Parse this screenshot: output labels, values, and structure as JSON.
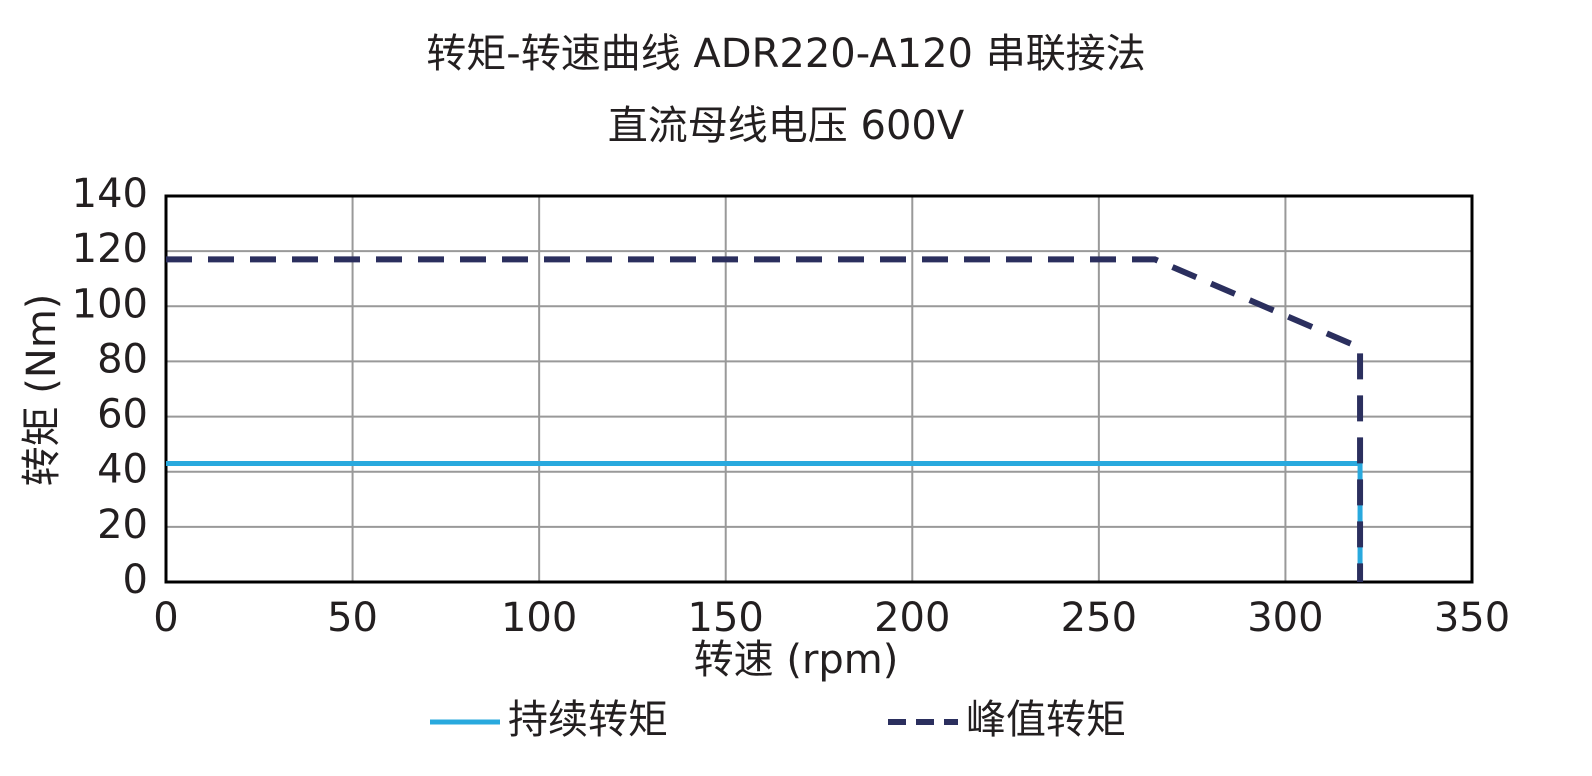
{
  "chart_data": {
    "type": "line",
    "title": "转矩-转速曲线 ADR220-A120 串联接法",
    "subtitle": "直流母线电压 600V",
    "x_label": "转速 (rpm)",
    "y_label": "转矩 (Nm)",
    "xlim": [
      0,
      350
    ],
    "xticks": [
      0,
      50,
      100,
      150,
      200,
      250,
      300,
      350
    ],
    "ylim": [
      0,
      140
    ],
    "yticks": [
      0,
      20,
      40,
      60,
      80,
      100,
      120,
      140
    ],
    "grid": true,
    "legend": "bottom",
    "series": [
      {
        "name": "持续转矩",
        "color": "#29a9de",
        "dash": false,
        "x": [
          0,
          320,
          320
        ],
        "values": [
          43,
          43,
          0
        ]
      },
      {
        "name": "峰值转矩",
        "color": "#2b2f5e",
        "dash": true,
        "x": [
          0,
          265,
          320,
          320
        ],
        "values": [
          117,
          117,
          85,
          0
        ]
      }
    ]
  }
}
